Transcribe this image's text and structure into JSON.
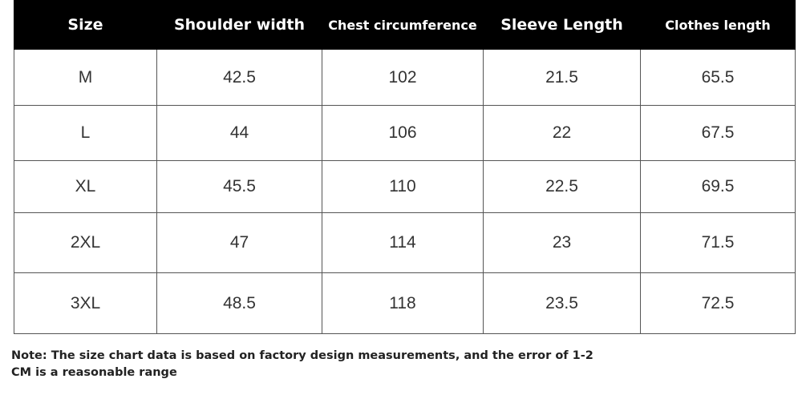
{
  "table": {
    "headers": [
      "Size",
      "Shoulder width",
      "Chest circumference",
      "Sleeve Length",
      "Clothes length"
    ],
    "rows": [
      [
        "M",
        "42.5",
        "102",
        "21.5",
        "65.5"
      ],
      [
        "L",
        "44",
        "106",
        "22",
        "67.5"
      ],
      [
        "XL",
        "45.5",
        "110",
        "22.5",
        "69.5"
      ],
      [
        "2XL",
        "47",
        "114",
        "23",
        "71.5"
      ],
      [
        "3XL",
        "48.5",
        "118",
        "23.5",
        "72.5"
      ]
    ]
  },
  "note": {
    "line1": "Note: The size chart data is based on factory design measurements, and the error of 1-2",
    "line2": "CM is a reasonable range"
  },
  "colors": {
    "header_background": "#000000",
    "header_text": "#ffffff",
    "grid_lines": "#555555"
  }
}
